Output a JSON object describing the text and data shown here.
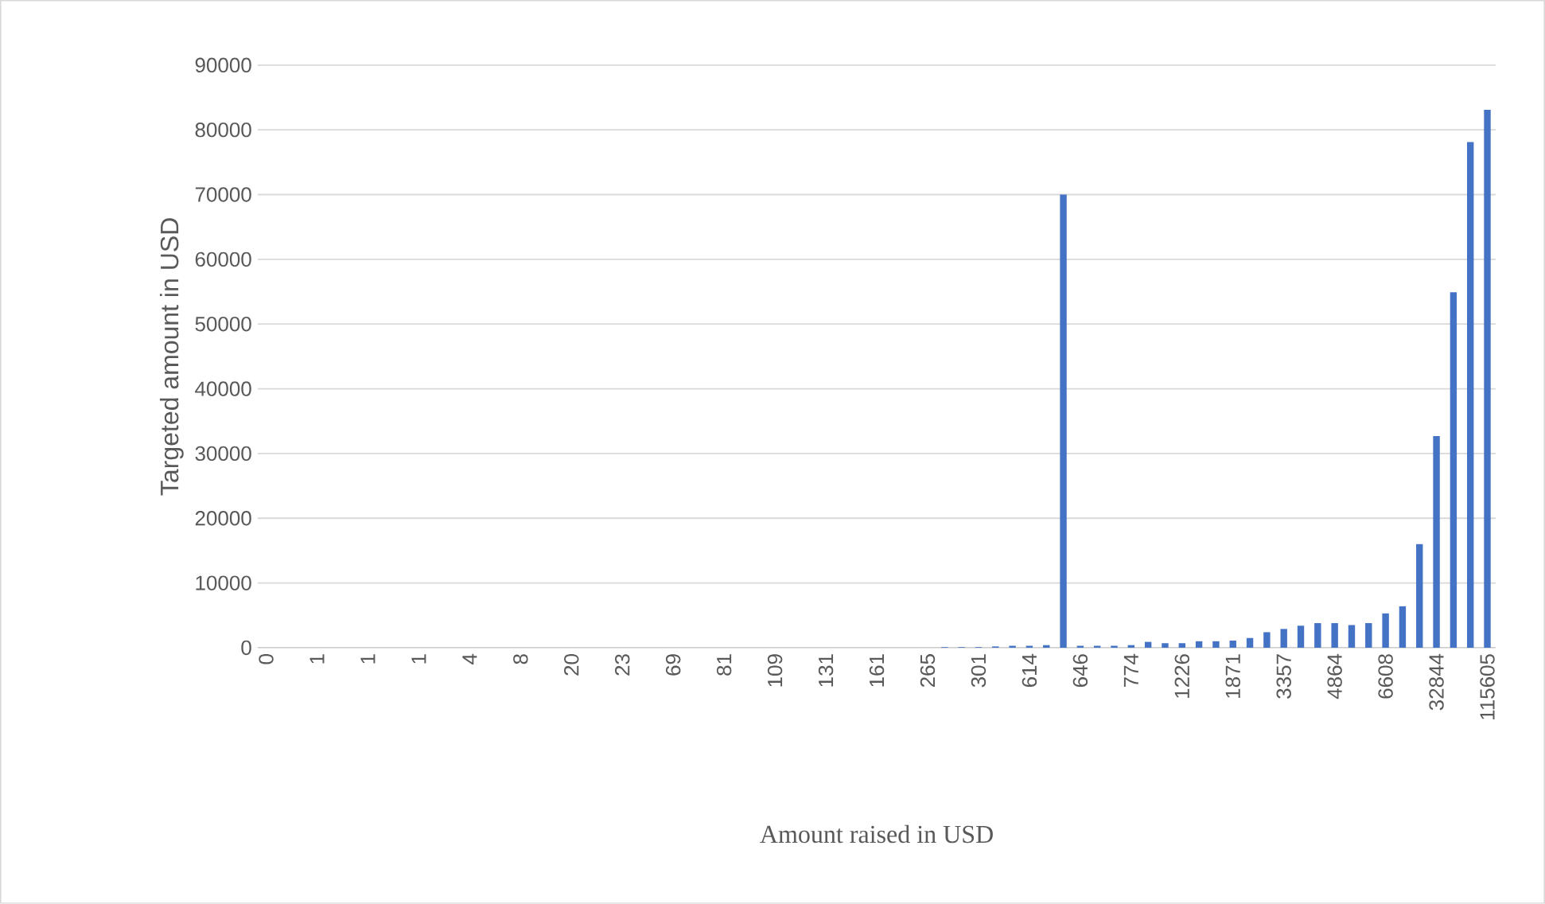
{
  "chart_data": {
    "type": "bar",
    "xlabel": "Amount raised in USD",
    "ylabel": "Targeted amount in USD",
    "categories": [
      "0",
      null,
      null,
      "1",
      null,
      null,
      "1",
      null,
      null,
      "1",
      null,
      null,
      "4",
      null,
      null,
      "8",
      null,
      null,
      "20",
      null,
      null,
      "23",
      null,
      null,
      "69",
      null,
      null,
      "81",
      null,
      null,
      "109",
      null,
      null,
      "131",
      null,
      null,
      "161",
      null,
      null,
      "265",
      null,
      null,
      "301",
      null,
      null,
      "614",
      null,
      null,
      "646",
      null,
      null,
      "774",
      null,
      null,
      "1226",
      null,
      null,
      "1871",
      null,
      null,
      "3357",
      null,
      null,
      "4864",
      null,
      null,
      "6608",
      null,
      null,
      "32844",
      null,
      null,
      "115605"
    ],
    "values": [
      0,
      0,
      0,
      0,
      0,
      0,
      0,
      0,
      0,
      0,
      0,
      0,
      0,
      0,
      0,
      0,
      0,
      0,
      0,
      0,
      0,
      0,
      0,
      0,
      0,
      0,
      0,
      0,
      0,
      0,
      0,
      0,
      0,
      0,
      0,
      0,
      0,
      0,
      0,
      0,
      100,
      100,
      100,
      200,
      300,
      300,
      400,
      70000,
      300,
      300,
      300,
      400,
      900,
      700,
      700,
      1000,
      1000,
      1100,
      1500,
      2400,
      2900,
      3400,
      3800,
      3800,
      3500,
      3800,
      5300,
      6400,
      16000,
      32700,
      54900,
      78100,
      83100
    ],
    "color": "#4472c4",
    "ylim": [
      0,
      90000
    ],
    "yticks": [
      0,
      10000,
      20000,
      30000,
      40000,
      50000,
      60000,
      70000,
      80000,
      90000
    ],
    "grid": "y"
  }
}
